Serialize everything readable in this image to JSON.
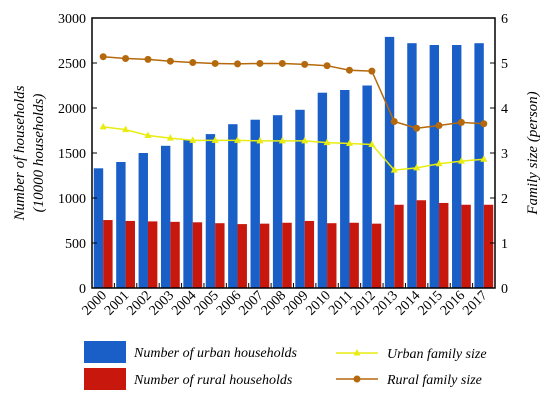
{
  "chart_data": {
    "type": "bar",
    "categories": [
      "2000",
      "2001",
      "2002",
      "2003",
      "2004",
      "2005",
      "2006",
      "2007",
      "2008",
      "2009",
      "2010",
      "2011",
      "2012",
      "2013",
      "2014",
      "2015",
      "2016",
      "2017"
    ],
    "ylabel_left_line1": "Number of households",
    "ylabel_left_line2": "(10000 households)",
    "ylabel_right": "Family size (person)",
    "ylim_left": [
      0,
      3000
    ],
    "ylim_right": [
      0,
      6
    ],
    "yticks_left": [
      "0",
      "500",
      "1000",
      "1500",
      "2000",
      "2500",
      "3000"
    ],
    "yticks_right": [
      "0",
      "1",
      "2",
      "3",
      "4",
      "5",
      "6"
    ],
    "colors": {
      "urban_bar": "#1a5fc8",
      "rural_bar": "#c8180d",
      "urban_line": "#e8ec10",
      "rural_line": "#b5690d"
    },
    "series": [
      {
        "name": "Number of urban households",
        "kind": "bar",
        "axis": "left",
        "values": [
          1330,
          1400,
          1500,
          1580,
          1650,
          1710,
          1820,
          1870,
          1920,
          1980,
          2170,
          2200,
          2250,
          2790,
          2720,
          2700,
          2700,
          2720
        ]
      },
      {
        "name": "Number of rural households",
        "kind": "bar",
        "axis": "left",
        "values": [
          755,
          745,
          740,
          735,
          730,
          720,
          710,
          715,
          725,
          745,
          720,
          725,
          715,
          925,
          975,
          945,
          925,
          925
        ]
      },
      {
        "name": "Urban family size",
        "kind": "line",
        "axis": "right",
        "values": [
          3.58,
          3.52,
          3.39,
          3.33,
          3.28,
          3.28,
          3.28,
          3.27,
          3.27,
          3.27,
          3.23,
          3.21,
          3.19,
          2.62,
          2.67,
          2.76,
          2.82,
          2.86
        ]
      },
      {
        "name": "Rural family size",
        "kind": "line",
        "axis": "right",
        "values": [
          5.14,
          5.1,
          5.08,
          5.04,
          5.01,
          4.99,
          4.98,
          4.99,
          4.99,
          4.97,
          4.94,
          4.84,
          4.82,
          3.7,
          3.55,
          3.61,
          3.68,
          3.65
        ]
      }
    ]
  }
}
